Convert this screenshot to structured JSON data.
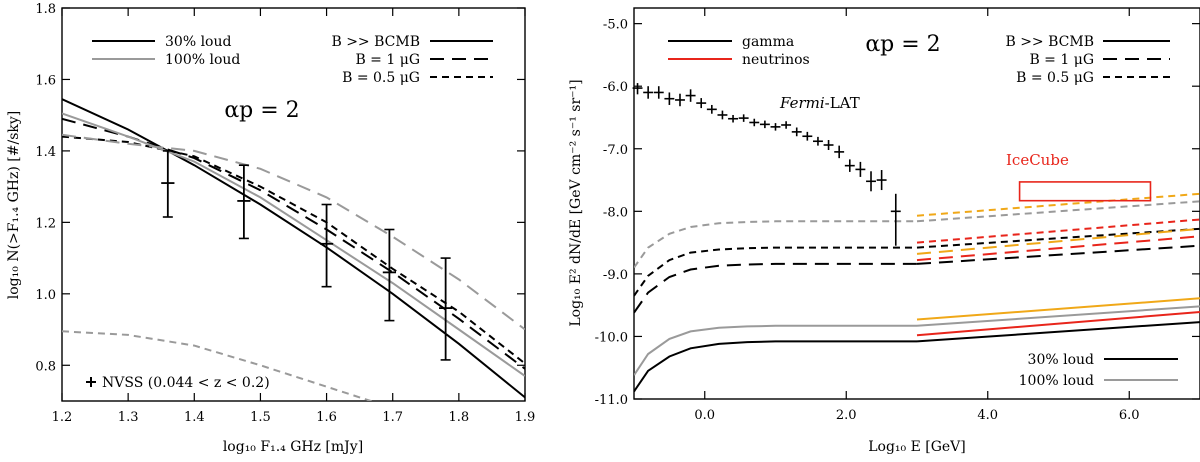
{
  "chart_data": [
    {
      "type": "line",
      "xlabel": "log₁₀ F₁.₄ GHz [mJy]",
      "ylabel": "log₁₀ N(>F₁.₄ GHz) [#/sky]",
      "xlim": [
        1.2,
        1.9
      ],
      "ylim": [
        0.7,
        1.8
      ],
      "xticks": [
        1.2,
        1.3,
        1.4,
        1.5,
        1.6,
        1.7,
        1.8,
        1.9
      ],
      "xtick_labels": [
        "1.2",
        "1.3",
        "1.4",
        "1.5",
        "1.6",
        "1.7",
        "1.8",
        "1.9"
      ],
      "yticks": [
        0.8,
        1.0,
        1.2,
        1.4,
        1.6,
        1.8
      ],
      "ytick_labels": [
        "0.8",
        "1.0",
        "1.2",
        "1.4",
        "1.6",
        "1.8"
      ],
      "annotation": "αp = 2",
      "grid": false,
      "legend_loudness": [
        {
          "label": "30% loud",
          "color": "#000000"
        },
        {
          "label": "100% loud",
          "color": "#9a9a9a"
        }
      ],
      "legend_field": [
        {
          "label": "B >> BCMB",
          "dash": "solid"
        },
        {
          "label": "B = 1 μG",
          "dash": "long-dash"
        },
        {
          "label": "B = 0.5 μG",
          "dash": "short-dash"
        }
      ],
      "series": [
        {
          "loud": "30%",
          "field": "B >> BCMB",
          "color": "#000000",
          "dash": "solid",
          "x": [
            1.2,
            1.3,
            1.4,
            1.5,
            1.6,
            1.7,
            1.8,
            1.9
          ],
          "y": [
            1.545,
            1.46,
            1.36,
            1.25,
            1.13,
            1.0,
            0.86,
            0.71
          ]
        },
        {
          "loud": "30%",
          "field": "B = 1 μG",
          "color": "#000000",
          "dash": "long-dash",
          "x": [
            1.2,
            1.3,
            1.4,
            1.5,
            1.6,
            1.7,
            1.8,
            1.9
          ],
          "y": [
            1.49,
            1.44,
            1.38,
            1.29,
            1.18,
            1.06,
            0.93,
            0.79
          ]
        },
        {
          "loud": "30%",
          "field": "B = 0.5 μG",
          "color": "#000000",
          "dash": "short-dash",
          "x": [
            1.2,
            1.3,
            1.4,
            1.5,
            1.6,
            1.7,
            1.8,
            1.9
          ],
          "y": [
            1.44,
            1.425,
            1.385,
            1.3,
            1.2,
            1.07,
            0.95,
            0.805
          ]
        },
        {
          "loud": "100%",
          "field": "B >> BCMB",
          "color": "#9a9a9a",
          "dash": "solid",
          "x": [
            1.2,
            1.3,
            1.4,
            1.5,
            1.6,
            1.7,
            1.8,
            1.9
          ],
          "y": [
            1.505,
            1.44,
            1.37,
            1.27,
            1.15,
            1.03,
            0.9,
            0.77
          ]
        },
        {
          "loud": "100%",
          "field": "B = 1 μG",
          "color": "#9a9a9a",
          "dash": "long-dash",
          "x": [
            1.2,
            1.3,
            1.4,
            1.5,
            1.6,
            1.7,
            1.8,
            1.9
          ],
          "y": [
            1.445,
            1.42,
            1.4,
            1.35,
            1.27,
            1.16,
            1.04,
            0.9
          ]
        },
        {
          "loud": "100%",
          "field": "B = 0.5 μG",
          "color": "#9a9a9a",
          "dash": "short-dash",
          "x": [
            1.2,
            1.3,
            1.4,
            1.5,
            1.6,
            1.7,
            1.75
          ],
          "y": [
            0.895,
            0.885,
            0.855,
            0.8,
            0.74,
            0.68,
            0.64
          ]
        }
      ],
      "observations": {
        "label": "NVSS (0.044 < z < 0.2)",
        "points": [
          {
            "x": 1.36,
            "xerr": 0.01,
            "y": 1.31,
            "ylo": 1.215,
            "yhi": 1.4
          },
          {
            "x": 1.475,
            "xerr": 0.01,
            "y": 1.26,
            "ylo": 1.155,
            "yhi": 1.36
          },
          {
            "x": 1.6,
            "xerr": 0.01,
            "y": 1.14,
            "ylo": 1.02,
            "yhi": 1.25
          },
          {
            "x": 1.695,
            "xerr": 0.01,
            "y": 1.06,
            "ylo": 0.925,
            "yhi": 1.18
          },
          {
            "x": 1.78,
            "xerr": 0.01,
            "y": 0.96,
            "ylo": 0.815,
            "yhi": 1.1
          }
        ]
      }
    },
    {
      "type": "line",
      "xlabel": "Log₁₀ E [GeV]",
      "ylabel": "Log₁₀ E² dN/dE [GeV cm⁻² s⁻¹ sr⁻¹]",
      "xlim": [
        -1.0,
        7.0
      ],
      "ylim": [
        -11.0,
        -4.75
      ],
      "xticks": [
        0,
        2,
        4,
        6
      ],
      "xtick_labels": [
        "0.0",
        "2.0",
        "4.0",
        "6.0"
      ],
      "yticks": [
        -11,
        -10,
        -9,
        -8,
        -7,
        -6,
        -5
      ],
      "ytick_labels": [
        "-11.0",
        "-10.0",
        "-9.0",
        "-8.0",
        "-7.0",
        "-6.0",
        "-5.0"
      ],
      "annotation": "αp = 2",
      "grid": false,
      "legend_particle": [
        {
          "label": "gamma",
          "color": "#000000"
        },
        {
          "label": "neutrinos",
          "color": "#e8251b"
        }
      ],
      "legend_field": [
        {
          "label": "B >> BCMB",
          "dash": "solid"
        },
        {
          "label": "B = 1 μG",
          "dash": "long-dash"
        },
        {
          "label": "B = 0.5 μG",
          "dash": "short-dash"
        }
      ],
      "legend_loudness": [
        {
          "label": "30% loud",
          "color": "#000000"
        },
        {
          "label": "100% loud",
          "color": "#9a9a9a"
        }
      ],
      "fermi_label": {
        "italic": "Fermi",
        "rest": "-LAT"
      },
      "icecube": {
        "label": "IceCube",
        "x": [
          4.45,
          6.3
        ],
        "y": [
          -7.83,
          -7.53
        ],
        "color": "#e8251b"
      },
      "gamma_series": [
        {
          "loud": "30%",
          "field": "B >> BCMB",
          "color": "#000000",
          "dash": "solid",
          "x": [
            -1.0,
            -0.8,
            -0.5,
            -0.2,
            0.2,
            0.6,
            1.0,
            1.5,
            2.0,
            2.5,
            3.0
          ],
          "y": [
            -10.88,
            -10.55,
            -10.32,
            -10.19,
            -10.12,
            -10.09,
            -10.08,
            -10.08,
            -10.08,
            -10.08,
            -10.08
          ]
        },
        {
          "loud": "30%",
          "field": "B = 1 μG",
          "color": "#000000",
          "dash": "long-dash",
          "x": [
            -1.0,
            -0.8,
            -0.5,
            -0.2,
            0.2,
            0.6,
            1.0,
            1.5,
            2.0,
            2.5,
            3.0
          ],
          "y": [
            -9.62,
            -9.3,
            -9.05,
            -8.93,
            -8.87,
            -8.85,
            -8.84,
            -8.84,
            -8.84,
            -8.84,
            -8.84
          ]
        },
        {
          "loud": "30%",
          "field": "B = 0.5 μG",
          "color": "#000000",
          "dash": "short-dash",
          "x": [
            -1.0,
            -0.8,
            -0.5,
            -0.2,
            0.2,
            0.6,
            1.0,
            1.5,
            2.0,
            2.5,
            3.0
          ],
          "y": [
            -9.35,
            -9.03,
            -8.78,
            -8.66,
            -8.61,
            -8.59,
            -8.58,
            -8.58,
            -8.58,
            -8.58,
            -8.58
          ]
        },
        {
          "loud": "100%",
          "field": "B >> BCMB",
          "color": "#9a9a9a",
          "dash": "solid",
          "x": [
            -1.0,
            -0.8,
            -0.5,
            -0.2,
            0.2,
            0.6,
            1.0,
            1.5,
            2.0,
            2.5,
            3.0
          ],
          "y": [
            -10.62,
            -10.28,
            -10.04,
            -9.92,
            -9.86,
            -9.84,
            -9.83,
            -9.83,
            -9.83,
            -9.83,
            -9.83
          ]
        },
        {
          "loud": "100%",
          "field": "B = 0.5 μG",
          "color": "#9a9a9a",
          "dash": "short-dash",
          "x": [
            -1.0,
            -0.8,
            -0.5,
            -0.2,
            0.2,
            0.6,
            1.0,
            1.5,
            2.0,
            2.5,
            3.0
          ],
          "y": [
            -8.9,
            -8.58,
            -8.36,
            -8.25,
            -8.19,
            -8.17,
            -8.16,
            -8.16,
            -8.16,
            -8.16,
            -8.16
          ]
        },
        {
          "loud": "30%",
          "field": "B >> BCMB",
          "color": "#000000",
          "dash": "solid",
          "x": [
            3.0,
            7.0
          ],
          "y": [
            -10.08,
            -9.77
          ]
        },
        {
          "loud": "30%",
          "field": "B = 1 μG",
          "color": "#000000",
          "dash": "long-dash",
          "x": [
            3.0,
            7.0
          ],
          "y": [
            -8.84,
            -8.55
          ]
        },
        {
          "loud": "30%",
          "field": "B = 0.5 μG",
          "color": "#000000",
          "dash": "short-dash",
          "x": [
            3.0,
            7.0
          ],
          "y": [
            -8.58,
            -8.28
          ]
        },
        {
          "loud": "100%",
          "field": "B >> BCMB",
          "color": "#9a9a9a",
          "dash": "solid",
          "x": [
            3.0,
            7.0
          ],
          "y": [
            -9.83,
            -9.52
          ]
        },
        {
          "loud": "100%",
          "field": "B = 0.5 μG",
          "color": "#9a9a9a",
          "dash": "short-dash",
          "x": [
            3.0,
            7.0
          ],
          "y": [
            -8.16,
            -7.84
          ]
        }
      ],
      "neutrino_series": [
        {
          "loud": "30%",
          "field": "B >> BCMB",
          "color": "#e8251b",
          "dash": "solid",
          "x": [
            3.0,
            7.0
          ],
          "y": [
            -9.98,
            -9.61
          ]
        },
        {
          "loud": "30%",
          "field": "B = 1 μG",
          "color": "#e8251b",
          "dash": "long-dash",
          "x": [
            3.0,
            7.0
          ],
          "y": [
            -8.78,
            -8.4
          ]
        },
        {
          "loud": "30%",
          "field": "B = 0.5 μG",
          "color": "#e8251b",
          "dash": "short-dash",
          "x": [
            3.0,
            7.0
          ],
          "y": [
            -8.5,
            -8.13
          ]
        },
        {
          "loud": "100%",
          "field": "B >> BCMB",
          "color": "#f0a818",
          "dash": "solid",
          "x": [
            3.0,
            7.0
          ],
          "y": [
            -9.73,
            -9.39
          ]
        },
        {
          "loud": "100%",
          "field": "B = 1 μG",
          "color": "#f0a818",
          "dash": "long-dash",
          "x": [
            3.0,
            7.0
          ],
          "y": [
            -8.68,
            -8.28
          ]
        },
        {
          "loud": "100%",
          "field": "B = 0.5 μG",
          "color": "#f0a818",
          "dash": "short-dash",
          "x": [
            3.0,
            7.0
          ],
          "y": [
            -8.07,
            -7.72
          ]
        }
      ],
      "fermi_points": {
        "x": [
          -0.95,
          -0.8,
          -0.65,
          -0.5,
          -0.35,
          -0.2,
          -0.05,
          0.1,
          0.25,
          0.4,
          0.55,
          0.7,
          0.85,
          1.0,
          1.15,
          1.3,
          1.45,
          1.6,
          1.75,
          1.9,
          2.05,
          2.2,
          2.35,
          2.5,
          2.7
        ],
        "y": [
          -6.03,
          -6.1,
          -6.1,
          -6.2,
          -6.22,
          -6.15,
          -6.27,
          -6.37,
          -6.46,
          -6.52,
          -6.51,
          -6.58,
          -6.61,
          -6.65,
          -6.62,
          -6.73,
          -6.8,
          -6.88,
          -6.94,
          -7.05,
          -7.27,
          -7.33,
          -7.52,
          -7.5,
          -8.0
        ],
        "xerr": 0.07,
        "ylo": [
          -6.13,
          -6.2,
          -6.2,
          -6.3,
          -6.32,
          -6.25,
          -6.35,
          -6.44,
          -6.53,
          -6.58,
          -6.57,
          -6.64,
          -6.67,
          -6.71,
          -6.68,
          -6.8,
          -6.87,
          -6.95,
          -7.02,
          -7.15,
          -7.37,
          -7.45,
          -7.68,
          -7.66,
          -8.55
        ],
        "yhi": [
          -5.95,
          -6.0,
          -6.0,
          -6.1,
          -6.12,
          -6.05,
          -6.19,
          -6.3,
          -6.39,
          -6.46,
          -6.45,
          -6.52,
          -6.55,
          -6.59,
          -6.56,
          -6.66,
          -6.73,
          -6.81,
          -6.86,
          -6.95,
          -7.17,
          -7.21,
          -7.36,
          -7.34,
          -7.72
        ]
      }
    }
  ]
}
